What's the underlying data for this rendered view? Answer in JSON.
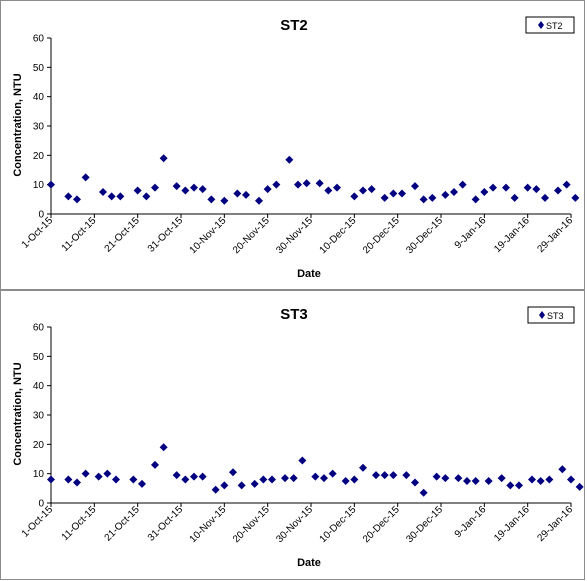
{
  "chart_data": [
    {
      "type": "scatter",
      "title": "ST2",
      "xlabel": "Date",
      "ylabel": "Concentration, NTU",
      "ylim": [
        0,
        60
      ],
      "yticks": [
        0,
        10,
        20,
        30,
        40,
        50,
        60
      ],
      "xlim": [
        "2015-10-01",
        "2016-01-29"
      ],
      "xticks": [
        "1-Oct-15",
        "11-Oct-15",
        "21-Oct-15",
        "31-Oct-15",
        "10-Nov-15",
        "20-Nov-15",
        "30-Nov-15",
        "10-Dec-15",
        "20-Dec-15",
        "30-Dec-15",
        "9-Jan-16",
        "19-Jan-16",
        "29-Jan-16"
      ],
      "legend": "top-right",
      "marker_color": "#000080",
      "series": [
        {
          "name": "ST2",
          "x": [
            "2015-10-01",
            "2015-10-05",
            "2015-10-07",
            "2015-10-09",
            "2015-10-13",
            "2015-10-15",
            "2015-10-17",
            "2015-10-21",
            "2015-10-23",
            "2015-10-25",
            "2015-10-27",
            "2015-10-30",
            "2015-11-01",
            "2015-11-03",
            "2015-11-05",
            "2015-11-07",
            "2015-11-10",
            "2015-11-13",
            "2015-11-15",
            "2015-11-18",
            "2015-11-20",
            "2015-11-22",
            "2015-11-25",
            "2015-11-27",
            "2015-11-29",
            "2015-12-02",
            "2015-12-04",
            "2015-12-06",
            "2015-12-10",
            "2015-12-12",
            "2015-12-14",
            "2015-12-17",
            "2015-12-19",
            "2015-12-21",
            "2015-12-24",
            "2015-12-26",
            "2015-12-28",
            "2015-12-31",
            "2016-01-02",
            "2016-01-04",
            "2016-01-07",
            "2016-01-09",
            "2016-01-11",
            "2016-01-14",
            "2016-01-16",
            "2016-01-19",
            "2016-01-21",
            "2016-01-23",
            "2016-01-26",
            "2016-01-28",
            "2016-01-30"
          ],
          "values": [
            10,
            6,
            5,
            12.5,
            7.5,
            6,
            6,
            8,
            6,
            9,
            19,
            9.5,
            8,
            9,
            8.5,
            5,
            4.5,
            7,
            6.5,
            4.5,
            8.5,
            10,
            18.5,
            10,
            10.5,
            10.5,
            8,
            9,
            6,
            8,
            8.5,
            5.5,
            7,
            7,
            9.5,
            5,
            5.5,
            6.5,
            7.5,
            10,
            5,
            7.5,
            9,
            9,
            5.5,
            9,
            8.5,
            5.5,
            8,
            10,
            5.5
          ]
        }
      ]
    },
    {
      "type": "scatter",
      "title": "ST3",
      "xlabel": "Date",
      "ylabel": "Concentration, NTU",
      "ylim": [
        0,
        60
      ],
      "yticks": [
        0,
        10,
        20,
        30,
        40,
        50,
        60
      ],
      "xlim": [
        "2015-10-01",
        "2016-01-29"
      ],
      "xticks": [
        "1-Oct-15",
        "11-Oct-15",
        "21-Oct-15",
        "31-Oct-15",
        "10-Nov-15",
        "20-Nov-15",
        "30-Nov-15",
        "10-Dec-15",
        "20-Dec-15",
        "30-Dec-15",
        "9-Jan-16",
        "19-Jan-16",
        "29-Jan-16"
      ],
      "legend": "top-right",
      "marker_color": "#000080",
      "series": [
        {
          "name": "ST3",
          "x": [
            "2015-10-01",
            "2015-10-05",
            "2015-10-07",
            "2015-10-09",
            "2015-10-12",
            "2015-10-14",
            "2015-10-16",
            "2015-10-20",
            "2015-10-22",
            "2015-10-25",
            "2015-10-27",
            "2015-10-30",
            "2015-11-01",
            "2015-11-03",
            "2015-11-05",
            "2015-11-08",
            "2015-11-10",
            "2015-11-12",
            "2015-11-14",
            "2015-11-17",
            "2015-11-19",
            "2015-11-21",
            "2015-11-24",
            "2015-11-26",
            "2015-11-28",
            "2015-12-01",
            "2015-12-03",
            "2015-12-05",
            "2015-12-08",
            "2015-12-10",
            "2015-12-12",
            "2015-12-15",
            "2015-12-17",
            "2015-12-19",
            "2015-12-22",
            "2015-12-24",
            "2015-12-26",
            "2015-12-29",
            "2015-12-31",
            "2016-01-03",
            "2016-01-05",
            "2016-01-07",
            "2016-01-10",
            "2016-01-13",
            "2016-01-15",
            "2016-01-17",
            "2016-01-20",
            "2016-01-22",
            "2016-01-24",
            "2016-01-27",
            "2016-01-29",
            "2016-01-31"
          ],
          "values": [
            8,
            8,
            7,
            10,
            9,
            10,
            8,
            8,
            6.5,
            13,
            19,
            9.5,
            8,
            9,
            9,
            4.5,
            6,
            10.5,
            6,
            6.5,
            8,
            8,
            8.5,
            8.5,
            14.5,
            9,
            8.5,
            10,
            7.5,
            8,
            12,
            9.5,
            9.5,
            9.5,
            9.5,
            7,
            3.5,
            9,
            8.5,
            8.5,
            7.5,
            7.5,
            7.5,
            8.5,
            6,
            6,
            8,
            7.5,
            8,
            11.5,
            8,
            5.5
          ]
        }
      ]
    }
  ]
}
